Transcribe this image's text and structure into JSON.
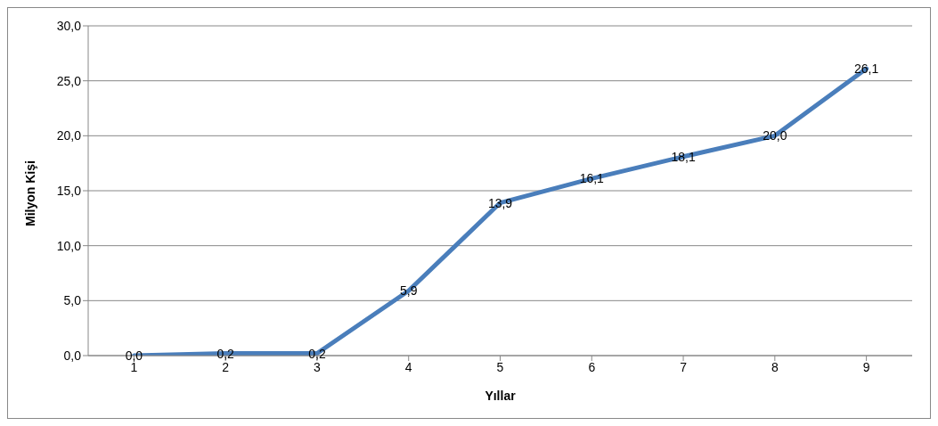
{
  "chart_data": {
    "type": "line",
    "xlabel": "Yıllar",
    "ylabel": "Milyon Kişi",
    "categories": [
      "1",
      "2",
      "3",
      "4",
      "5",
      "6",
      "7",
      "8",
      "9"
    ],
    "values": [
      0.0,
      0.2,
      0.2,
      5.9,
      13.9,
      16.1,
      18.1,
      20.0,
      26.1
    ],
    "value_labels": [
      "0,0",
      "0,2",
      "0,2",
      "5,9",
      "13,9",
      "16,1",
      "18,1",
      "20,0",
      "26,1"
    ],
    "color": "#4a7ebb",
    "ylim": [
      0,
      30
    ],
    "yticks": [
      {
        "value": 0,
        "label": "0,0"
      },
      {
        "value": 5,
        "label": "5,0"
      },
      {
        "value": 10,
        "label": "10,0"
      },
      {
        "value": 15,
        "label": "15,0"
      },
      {
        "value": 20,
        "label": "20,0"
      },
      {
        "value": 25,
        "label": "25,0"
      },
      {
        "value": 30,
        "label": "30,0"
      }
    ],
    "grid": "y",
    "marker": "none",
    "line_style": "solid"
  }
}
